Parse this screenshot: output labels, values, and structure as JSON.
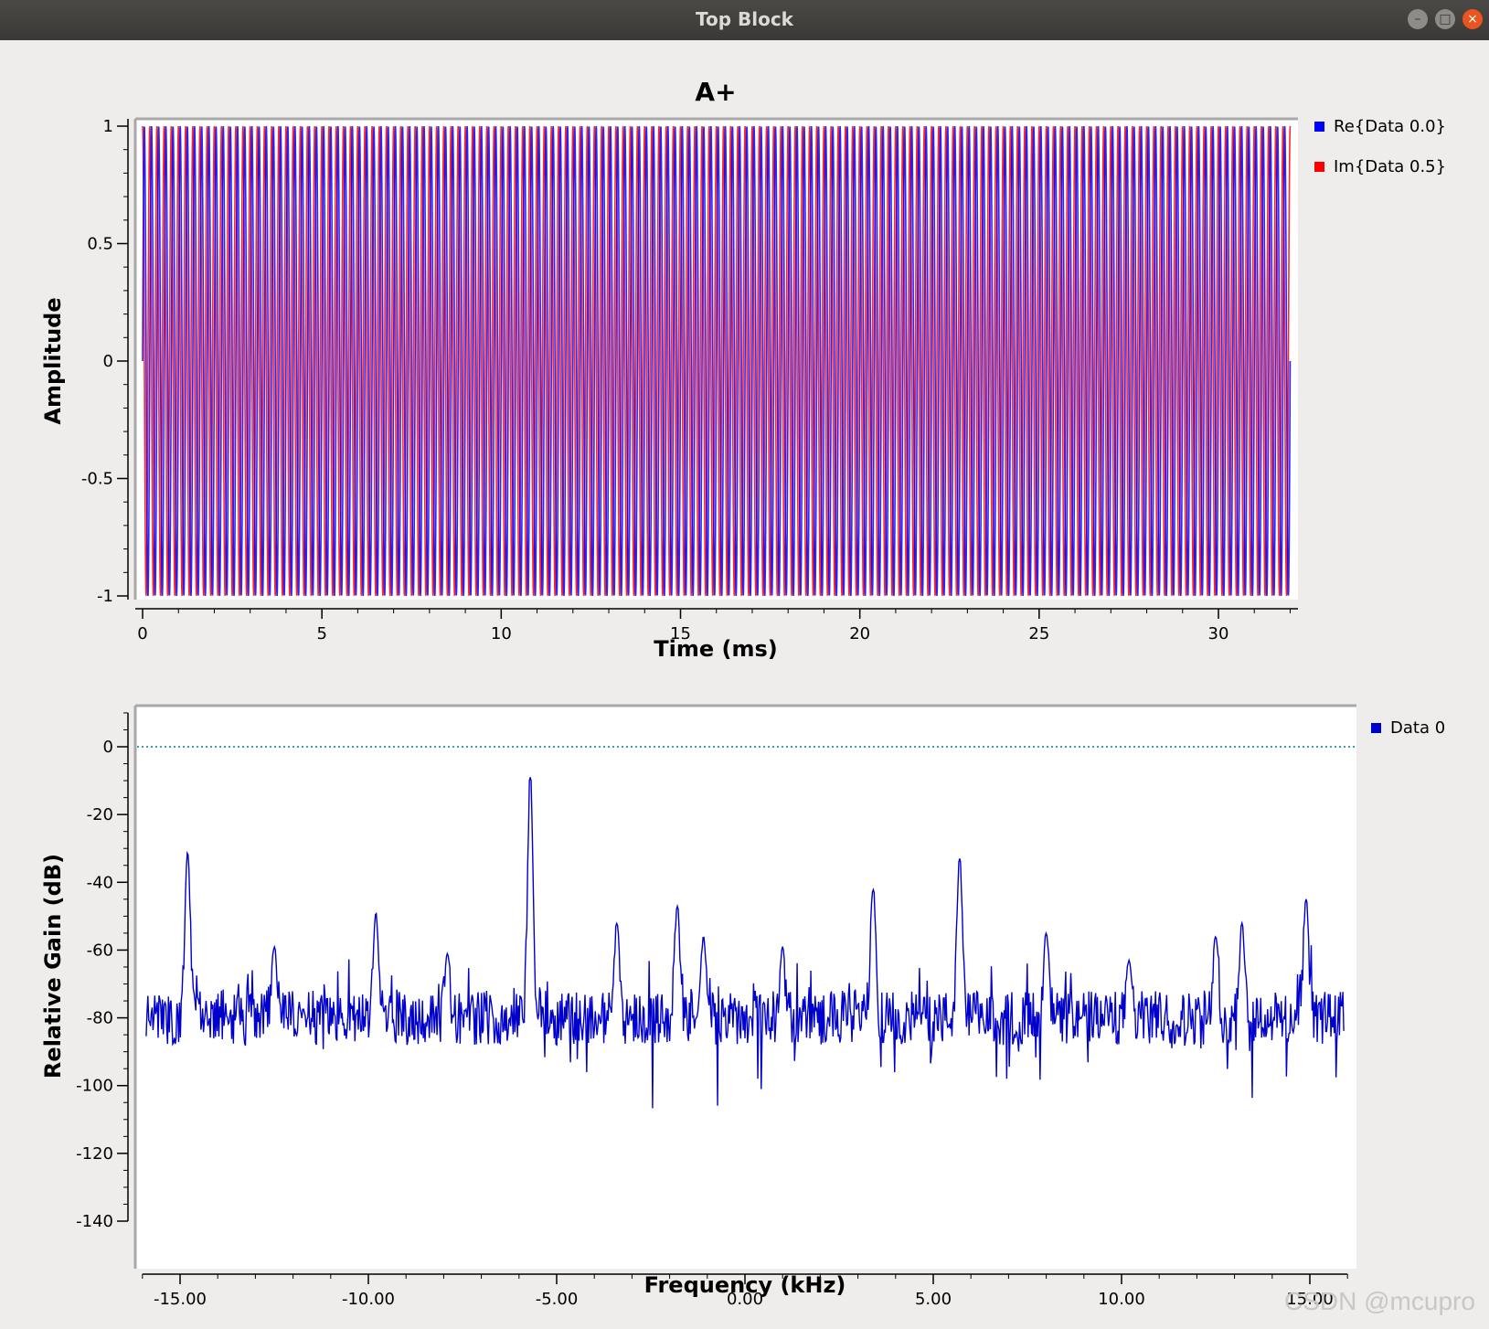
{
  "window": {
    "title": "Top Block"
  },
  "watermark": "CSDN @mcupro",
  "chart_data": [
    {
      "type": "line",
      "title": "A+",
      "xlabel": "Time (ms)",
      "ylabel": "Amplitude",
      "xlim": [
        0,
        32
      ],
      "ylim": [
        -1,
        1
      ],
      "x_ticks": [
        0,
        5,
        10,
        15,
        20,
        25,
        30
      ],
      "x_tick_labels": [
        "0",
        "5",
        "10",
        "15",
        "20",
        "25",
        "30"
      ],
      "y_ticks": [
        1,
        0.5,
        0,
        -0.5,
        -1
      ],
      "y_tick_labels": [
        "1",
        "0.5",
        "0",
        "-0.5",
        "-1"
      ],
      "legend_position": "right",
      "series": [
        {
          "name": "Re{Data 0.0}",
          "color": "#0000ff",
          "frequency_khz": 5,
          "phase": 0
        },
        {
          "name": "Im{Data 0.5}",
          "color": "#ff0000",
          "frequency_khz": 5,
          "phase": 0.25
        }
      ]
    },
    {
      "type": "line",
      "title": "",
      "xlabel": "Frequency (kHz)",
      "ylabel": "Relative Gain (dB)",
      "xlim": [
        -16,
        16
      ],
      "ylim": [
        -140,
        10
      ],
      "x_ticks": [
        -15,
        -10,
        -5,
        0,
        5,
        10,
        15
      ],
      "x_tick_labels": [
        "-15.00",
        "-10.00",
        "-5.00",
        "0.00",
        "5.00",
        "10.00",
        "15.00"
      ],
      "y_ticks": [
        0,
        -20,
        -40,
        -60,
        -80,
        -100,
        -120,
        -140
      ],
      "y_tick_labels": [
        "0",
        "-20",
        "-40",
        "-60",
        "-80",
        "-100",
        "-120",
        "-140"
      ],
      "reference_line_db": 0,
      "noise_floor_db": -80,
      "legend_position": "top-right",
      "series": [
        {
          "name": "Data 0",
          "color": "#0000cc"
        }
      ],
      "peaks": [
        {
          "x": -14.8,
          "y": -31
        },
        {
          "x": -12.5,
          "y": -59
        },
        {
          "x": -9.8,
          "y": -49
        },
        {
          "x": -7.9,
          "y": -61
        },
        {
          "x": -5.7,
          "y": -9
        },
        {
          "x": -3.4,
          "y": -52
        },
        {
          "x": -1.8,
          "y": -47
        },
        {
          "x": -1.1,
          "y": -56
        },
        {
          "x": 1.0,
          "y": -59
        },
        {
          "x": 3.4,
          "y": -42
        },
        {
          "x": 5.7,
          "y": -33
        },
        {
          "x": 8.0,
          "y": -55
        },
        {
          "x": 10.2,
          "y": -63
        },
        {
          "x": 12.5,
          "y": -56
        },
        {
          "x": 13.2,
          "y": -52
        },
        {
          "x": 14.9,
          "y": -45
        }
      ]
    }
  ]
}
